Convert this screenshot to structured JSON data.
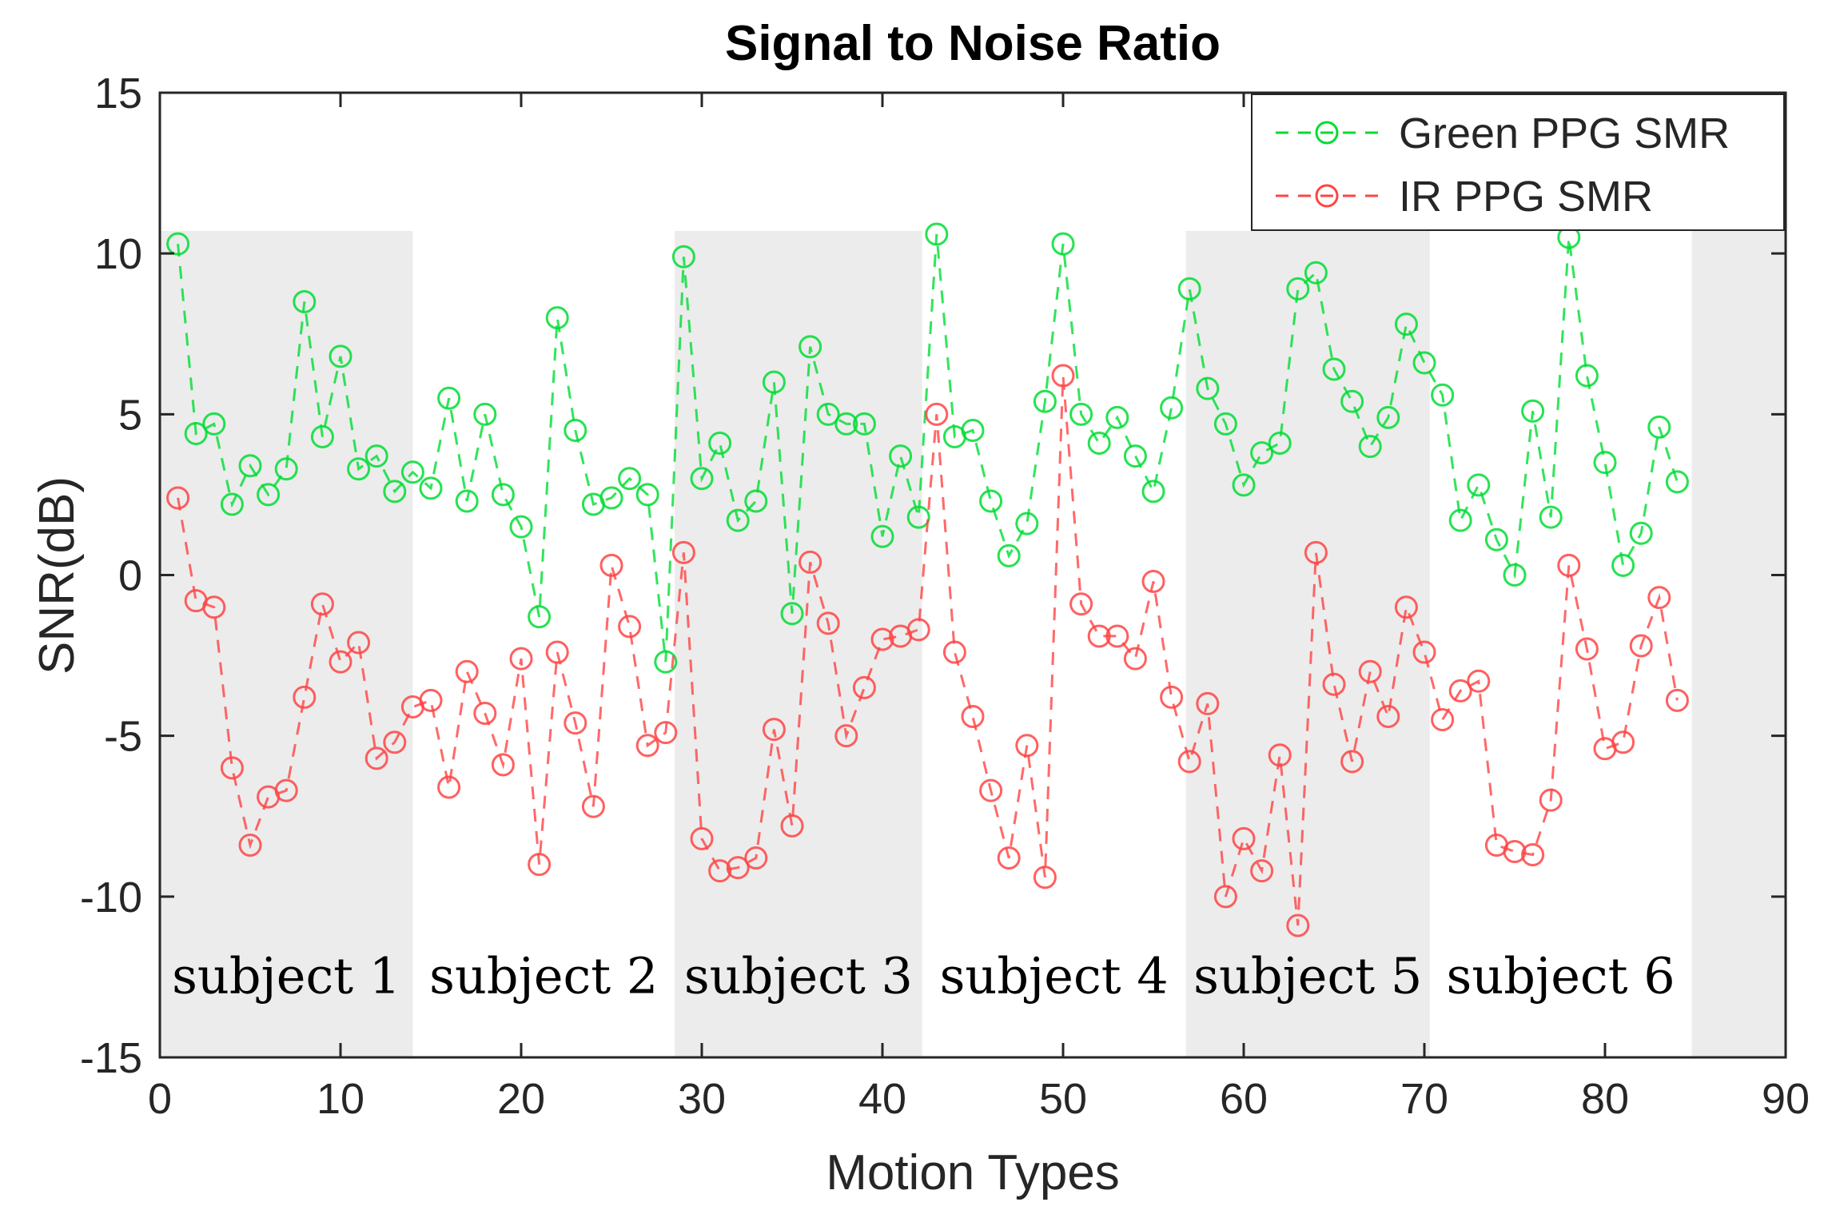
{
  "chart_data": {
    "type": "line",
    "title": "Signal to Noise Ratio",
    "xlabel": "Motion Types",
    "ylabel": "SNR(dB)",
    "xlim": [
      0,
      90
    ],
    "ylim": [
      -15,
      15
    ],
    "xticks": [
      0,
      10,
      20,
      30,
      40,
      50,
      60,
      70,
      80,
      90
    ],
    "yticks": [
      15,
      10,
      5,
      0,
      -5,
      -10,
      -15
    ],
    "legend_position": "top-right",
    "shaded_regions": [
      {
        "label": "subject 1",
        "x_start": 0,
        "x_end": 14,
        "shaded": true
      },
      {
        "label": "subject 2",
        "x_start": 14,
        "x_end": 28.5,
        "shaded": false
      },
      {
        "label": "subject 3",
        "x_start": 28.5,
        "x_end": 42.2,
        "shaded": true
      },
      {
        "label": "subject 4",
        "x_start": 42.2,
        "x_end": 56.8,
        "shaded": false
      },
      {
        "label": "subject 5",
        "x_start": 56.8,
        "x_end": 70.3,
        "shaded": true
      },
      {
        "label": "subject 6",
        "x_start": 70.3,
        "x_end": 84.8,
        "shaded": false
      },
      {
        "label": "",
        "x_start": 84.8,
        "x_end": 90,
        "shaded": true
      }
    ],
    "shade_top": 10.7,
    "x": [
      1,
      2,
      3,
      4,
      5,
      6,
      7,
      8,
      9,
      10,
      11,
      12,
      13,
      14,
      15,
      16,
      17,
      18,
      19,
      20,
      21,
      22,
      23,
      24,
      25,
      26,
      27,
      28,
      29,
      30,
      31,
      32,
      33,
      34,
      35,
      36,
      37,
      38,
      39,
      40,
      41,
      42,
      43,
      44,
      45,
      46,
      47,
      48,
      49,
      50,
      51,
      52,
      53,
      54,
      55,
      56,
      57,
      58,
      59,
      60,
      61,
      62,
      63,
      64,
      65,
      66,
      67,
      68,
      69,
      70,
      71,
      72,
      73,
      74,
      75,
      76,
      77,
      78,
      79,
      80,
      81,
      82,
      83,
      84
    ],
    "series": [
      {
        "name": "Green PPG SMR",
        "color": "#00dd33",
        "values": [
          10.3,
          4.4,
          4.7,
          2.2,
          3.4,
          2.5,
          3.3,
          8.5,
          4.3,
          6.8,
          3.3,
          3.7,
          2.6,
          3.2,
          2.7,
          5.5,
          2.3,
          5.0,
          2.5,
          1.5,
          -1.3,
          8.0,
          4.5,
          2.2,
          2.4,
          3.0,
          2.5,
          -2.7,
          9.9,
          3.0,
          4.1,
          1.7,
          2.3,
          6.0,
          -1.2,
          7.1,
          5.0,
          4.7,
          4.7,
          1.2,
          3.7,
          1.8,
          10.6,
          4.3,
          4.5,
          2.3,
          0.6,
          1.6,
          5.4,
          10.3,
          5.0,
          4.1,
          4.9,
          3.7,
          2.6,
          5.2,
          8.9,
          5.8,
          4.7,
          2.8,
          3.8,
          4.1,
          8.9,
          9.4,
          6.4,
          5.4,
          4.0,
          4.9,
          7.8,
          6.6,
          5.6,
          1.7,
          2.8,
          1.1,
          0.0,
          5.1,
          1.8,
          10.5,
          6.2,
          3.5,
          0.3,
          1.3,
          4.6,
          2.9
        ]
      },
      {
        "name": "IR PPG SMR",
        "color": "#ff4444",
        "values": [
          2.4,
          -0.8,
          -1.0,
          -6.0,
          -8.4,
          -6.9,
          -6.7,
          -3.8,
          -0.9,
          -2.7,
          -2.1,
          -5.7,
          -5.2,
          -4.1,
          -3.9,
          -6.6,
          -3.0,
          -4.3,
          -5.9,
          -2.6,
          -9.0,
          -2.4,
          -4.6,
          -7.2,
          0.3,
          -1.6,
          -5.3,
          -4.9,
          0.7,
          -8.2,
          -9.2,
          -9.1,
          -8.8,
          -4.8,
          -7.8,
          0.4,
          -1.5,
          -5.0,
          -3.5,
          -2.0,
          -1.9,
          -1.7,
          5.0,
          -2.4,
          -4.4,
          -6.7,
          -8.8,
          -5.3,
          -9.4,
          6.2,
          -0.9,
          -1.9,
          -1.9,
          -2.6,
          -0.2,
          -3.8,
          -5.8,
          -4.0,
          -10.0,
          -8.2,
          -9.2,
          -5.6,
          -10.9,
          0.7,
          -3.4,
          -5.8,
          -3.0,
          -4.4,
          -1.0,
          -2.4,
          -4.5,
          -3.6,
          -3.3,
          -8.4,
          -8.6,
          -8.7,
          -7.0,
          0.3,
          -2.3,
          -5.4,
          -5.2,
          -2.2,
          -0.7,
          -3.9
        ]
      }
    ]
  }
}
